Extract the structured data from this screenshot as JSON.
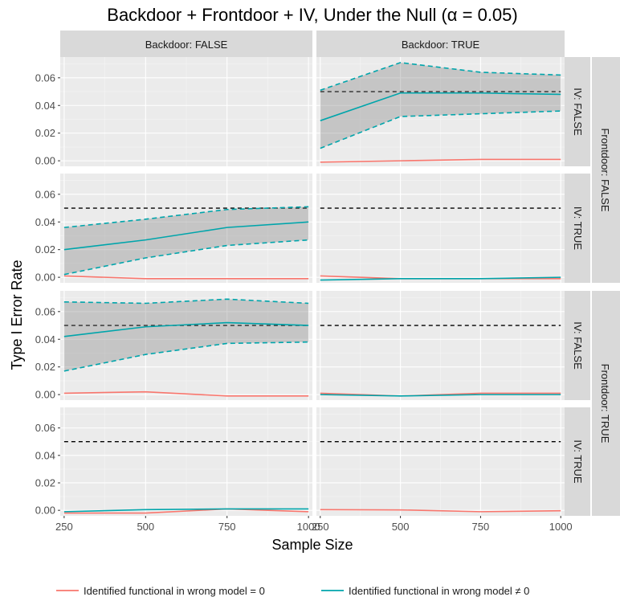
{
  "chart_data": {
    "type": "line",
    "title": "Backdoor + Frontdoor + IV, Under the Null (α = 0.05)",
    "xlabel": "Sample Size",
    "ylabel": "Type I Error Rate",
    "x": [
      250,
      500,
      750,
      1000
    ],
    "xlim": [
      238,
      1012
    ],
    "ylim": [
      -0.004,
      0.075
    ],
    "yticks": [
      0.0,
      0.02,
      0.04,
      0.06
    ],
    "ytick_labels": [
      "0.00",
      "0.02",
      "0.04",
      "0.06"
    ],
    "xtick_labels": [
      "250",
      "500",
      "750",
      "1000"
    ],
    "reference_line": 0.05,
    "grid": true,
    "legend_position": "bottom",
    "col_strips": [
      "Backdoor: FALSE",
      "Backdoor: TRUE"
    ],
    "row_strips_inner": [
      "IV: FALSE",
      "IV: TRUE",
      "IV: FALSE",
      "IV: TRUE"
    ],
    "row_strips_outer": [
      "Frontdoor: FALSE",
      "Frontdoor: TRUE"
    ],
    "legend": [
      {
        "label": "Identified functional in wrong model = 0",
        "color": "#F8766D"
      },
      {
        "label": "Identified functional in wrong model ≠ 0",
        "color": "#00A5AB"
      }
    ],
    "panels": [
      {
        "row": 0,
        "col": 0,
        "empty": true
      },
      {
        "row": 0,
        "col": 1,
        "series": [
          {
            "legend_index": 0,
            "values": [
              -0.001,
              0.0,
              0.001,
              0.001
            ]
          },
          {
            "legend_index": 1,
            "values": [
              0.029,
              0.049,
              0.049,
              0.048
            ],
            "band_lower": [
              0.009,
              0.032,
              0.034,
              0.036
            ],
            "band_upper": [
              0.051,
              0.071,
              0.064,
              0.062
            ]
          }
        ]
      },
      {
        "row": 1,
        "col": 0,
        "series": [
          {
            "legend_index": 0,
            "values": [
              0.001,
              -0.001,
              -0.001,
              -0.001
            ]
          },
          {
            "legend_index": 1,
            "values": [
              0.02,
              0.027,
              0.036,
              0.04
            ],
            "band_lower": [
              0.002,
              0.014,
              0.023,
              0.027
            ],
            "band_upper": [
              0.036,
              0.042,
              0.049,
              0.051
            ]
          }
        ]
      },
      {
        "row": 1,
        "col": 1,
        "series": [
          {
            "legend_index": 0,
            "values": [
              0.001,
              -0.001,
              -0.001,
              -0.001
            ]
          },
          {
            "legend_index": 1,
            "values": [
              -0.002,
              -0.001,
              -0.001,
              0.0
            ]
          }
        ]
      },
      {
        "row": 2,
        "col": 0,
        "series": [
          {
            "legend_index": 0,
            "values": [
              0.001,
              0.002,
              -0.001,
              -0.001
            ]
          },
          {
            "legend_index": 1,
            "values": [
              0.042,
              0.049,
              0.052,
              0.05
            ],
            "band_lower": [
              0.017,
              0.029,
              0.037,
              0.038
            ],
            "band_upper": [
              0.067,
              0.066,
              0.069,
              0.066
            ]
          }
        ]
      },
      {
        "row": 2,
        "col": 1,
        "series": [
          {
            "legend_index": 0,
            "values": [
              0.001,
              -0.001,
              0.001,
              0.001
            ]
          },
          {
            "legend_index": 1,
            "values": [
              0.0,
              -0.001,
              0.0,
              0.0
            ]
          }
        ]
      },
      {
        "row": 3,
        "col": 0,
        "series": [
          {
            "legend_index": 0,
            "values": [
              -0.002,
              -0.002,
              0.001,
              -0.001
            ]
          },
          {
            "legend_index": 1,
            "values": [
              -0.001,
              0.0005,
              0.001,
              0.001
            ]
          }
        ]
      },
      {
        "row": 3,
        "col": 1,
        "series": [
          {
            "legend_index": 0,
            "values": [
              0.0005,
              0.0003,
              -0.001,
              -0.0003
            ]
          }
        ]
      }
    ]
  }
}
